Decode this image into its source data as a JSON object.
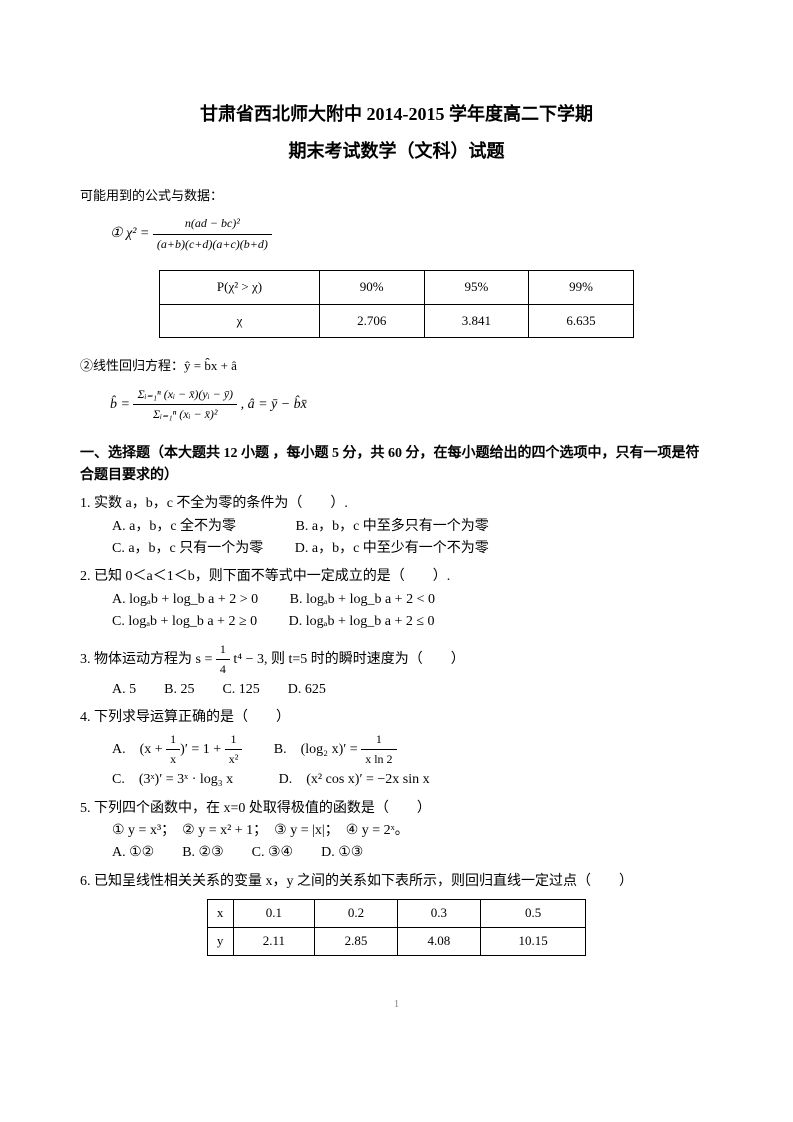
{
  "title_line1": "甘肃省西北师大附中 2014-2015 学年度高二下学期",
  "title_line2": "期末考试数学（文科）试题",
  "note_intro": "可能用到的公式与数据：",
  "formula_chi_label": "①",
  "formula_chi": "χ² = n(ad − bc)² / [(a+b)(c+d)(a+c)(b+d)]",
  "chi_table": {
    "header": [
      "P(χ² > χ)",
      "90%",
      "95%",
      "99%"
    ],
    "row": [
      "χ",
      "2.706",
      "3.841",
      "6.635"
    ]
  },
  "regress_label": "②线性回归方程：ŷ = b̂x + â",
  "regress_formula_b_num": "Σᵢ₌₁ⁿ (xᵢ − x̄)(yᵢ − ȳ)",
  "regress_formula_b_den": "Σᵢ₌₁ⁿ (xᵢ − x̄)²",
  "regress_formula_a": ", â = ȳ − b̂x̄",
  "section1_head": "一、选择题（本大题共 12 小题 ，每小题 5 分，共 60 分，在每小题给出的四个选项中，只有一项是符合题目要求的）",
  "q1": {
    "stem": "1. 实数 a，b，c 不全为零的条件为（　　）.",
    "A": "A. a，b，c 全不为零",
    "B": "B. a，b，c 中至多只有一个为零",
    "C": "C. a，b，c 只有一个为零",
    "D": "D. a，b，c 中至少有一个不为零"
  },
  "q2": {
    "stem": "2. 已知 0＜a＜1＜b，则下面不等式中一定成立的是（　　）.",
    "A": "A. logₐb + log_b a + 2 > 0",
    "B": "B. logₐb + log_b a + 2 < 0",
    "C": "C. logₐb + log_b a + 2 ≥ 0",
    "D": "D. logₐb + log_b a + 2 ≤ 0"
  },
  "q3": {
    "stem_pre": "3. 物体运动方程为 s = ",
    "stem_frac_n": "1",
    "stem_frac_d": "4",
    "stem_post": " t⁴ − 3, 则 t=5 时的瞬时速度为（　　）",
    "opts": "A. 5　　B. 25　　C. 125　　D. 625"
  },
  "q4": {
    "stem": "4. 下列求导运算正确的是（　　）",
    "A_pre": "A.　(x + ",
    "A_f1n": "1",
    "A_f1d": "x",
    "A_mid": ")′ = 1 + ",
    "A_f2n": "1",
    "A_f2d": "x²",
    "B_pre": "B.　(log₂ x)′ = ",
    "B_fn": "1",
    "B_fd": "x ln 2",
    "C": "C.　(3ˣ)′ = 3ˣ · log₃ x",
    "D": "D.　(x² cos x)′ = −2x sin x"
  },
  "q5": {
    "stem": "5. 下列四个函数中，在 x=0 处取得极值的函数是（　　）",
    "line2": "① y = x³；　② y = x² + 1；　③ y = |x|；　④ y = 2ˣ。",
    "opts": "A. ①②　　B. ②③　　C. ③④　　D. ①③"
  },
  "q6": {
    "stem": "6. 已知呈线性相关关系的变量 x，y 之间的关系如下表所示，则回归直线一定过点（　　）",
    "table": {
      "x": [
        "x",
        "0.1",
        "0.2",
        "0.3",
        "0.5"
      ],
      "y": [
        "y",
        "2.11",
        "2.85",
        "4.08",
        "10.15"
      ]
    }
  },
  "page_num": "1"
}
